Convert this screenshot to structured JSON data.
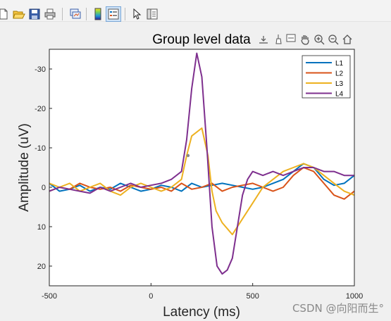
{
  "toolbar": {
    "buttons": [
      {
        "name": "new-figure-icon"
      },
      {
        "name": "open-file-icon"
      },
      {
        "name": "save-figure-icon"
      },
      {
        "name": "print-figure-icon"
      },
      {
        "name": "link-plot-icon"
      },
      {
        "name": "insert-colorbar-icon"
      },
      {
        "name": "insert-legend-icon"
      },
      {
        "name": "edit-plot-icon"
      },
      {
        "name": "property-inspector-icon"
      }
    ]
  },
  "axes_toolbar": {
    "icons": [
      "export-icon",
      "brush-icon",
      "data-tips-icon",
      "pan-icon",
      "zoom-in-icon",
      "zoom-out-icon",
      "home-icon"
    ]
  },
  "watermark": "CSDN @向阳而生°",
  "chart_data": {
    "type": "line",
    "title": "Group level data",
    "xlabel": "Latency (ms)",
    "ylabel": "Amplitude (uV)",
    "xlim": [
      -500,
      1000
    ],
    "ylim": [
      25,
      -35
    ],
    "y_reversed": true,
    "xticks": [
      "-500",
      "0",
      "500",
      "1000"
    ],
    "yticks": [
      "-30",
      "-20",
      "-10",
      "0",
      "10",
      "20"
    ],
    "legend_position": "top-right",
    "grid": false,
    "series": [
      {
        "name": "L1",
        "color": "#0072bd",
        "x": [
          -500,
          -450,
          -400,
          -350,
          -300,
          -250,
          -200,
          -150,
          -100,
          -50,
          0,
          50,
          100,
          150,
          200,
          250,
          300,
          350,
          400,
          450,
          500,
          550,
          600,
          650,
          700,
          750,
          800,
          850,
          900,
          950,
          1000
        ],
        "y": [
          -1,
          1,
          0.5,
          -0.5,
          1,
          0,
          0.5,
          -1,
          0,
          1,
          0.5,
          -0.5,
          0,
          1,
          -1,
          0,
          -0.5,
          -1,
          -0.5,
          0,
          0.5,
          0,
          -1,
          -2,
          -4,
          -6,
          -5,
          -2,
          -0.5,
          -1,
          -3
        ]
      },
      {
        "name": "L2",
        "color": "#d95319",
        "x": [
          -500,
          -450,
          -400,
          -350,
          -300,
          -250,
          -200,
          -150,
          -100,
          -50,
          0,
          50,
          100,
          150,
          200,
          250,
          300,
          350,
          400,
          450,
          500,
          550,
          600,
          650,
          700,
          750,
          800,
          850,
          900,
          950,
          1000
        ],
        "y": [
          1,
          0,
          0.5,
          -1,
          0,
          0.5,
          0,
          1,
          -0.5,
          0,
          0.5,
          0,
          1,
          -1,
          0.5,
          0,
          -1,
          1,
          0,
          -0.5,
          -1,
          0,
          1,
          0,
          -3,
          -5,
          -4,
          -1,
          2,
          3,
          1
        ]
      },
      {
        "name": "L3",
        "color": "#edb120",
        "x": [
          -500,
          -450,
          -400,
          -350,
          -300,
          -250,
          -200,
          -150,
          -100,
          -50,
          0,
          50,
          100,
          150,
          175,
          200,
          250,
          280,
          300,
          320,
          350,
          400,
          450,
          500,
          550,
          600,
          650,
          700,
          750,
          800,
          850,
          900,
          950,
          1000
        ],
        "y": [
          -1,
          0,
          -1,
          1,
          0,
          -1,
          1,
          2,
          0,
          -1,
          0,
          1,
          0,
          -2,
          -8,
          -13,
          -15,
          -8,
          1,
          6,
          9,
          12,
          8,
          4,
          0,
          -2,
          -4,
          -5,
          -6,
          -5,
          -3,
          -1,
          1,
          2
        ]
      },
      {
        "name": "L4",
        "color": "#7e2f8e",
        "x": [
          -500,
          -450,
          -400,
          -350,
          -300,
          -250,
          -200,
          -150,
          -100,
          -50,
          0,
          50,
          100,
          150,
          175,
          200,
          225,
          250,
          275,
          300,
          325,
          350,
          375,
          400,
          425,
          450,
          475,
          500,
          550,
          600,
          650,
          700,
          750,
          800,
          850,
          900,
          950,
          1000
        ],
        "y": [
          1,
          0,
          0.5,
          1,
          1.5,
          0,
          1,
          0,
          -1,
          0,
          -0.5,
          -1,
          -2,
          -4,
          -12,
          -25,
          -34,
          -28,
          -10,
          10,
          20,
          22,
          21,
          18,
          10,
          2,
          -2,
          -4,
          -3,
          -4,
          -3,
          -4,
          -5,
          -5,
          -4,
          -4,
          -3,
          -3
        ]
      }
    ]
  }
}
